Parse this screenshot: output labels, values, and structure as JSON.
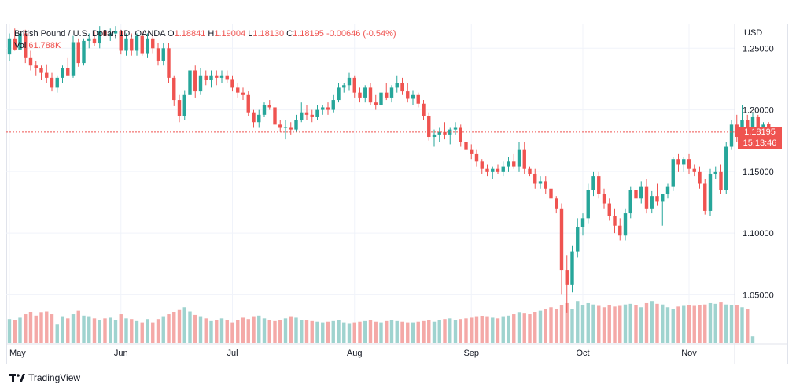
{
  "legend": {
    "instrument": "British Pound / U.S. Dollar, 1D, OANDA",
    "open_label": "O",
    "open": "1.18841",
    "high_label": "H",
    "high": "1.19004",
    "low_label": "L",
    "low": "1.18130",
    "close_label": "C",
    "close": "1.18195",
    "change": "-0.00646 (-0.54%)",
    "vol_label": "Vol",
    "vol": "61.788K"
  },
  "axis": {
    "currency": "USD"
  },
  "price_badge": {
    "price": "1.18195",
    "countdown": "15:13:46"
  },
  "brand": {
    "name": "TradingView"
  },
  "colors": {
    "up": "#26a69a",
    "down": "#ef5350",
    "up_volume": "#9fd3cf",
    "down_volume": "#f4a9a7"
  },
  "chart_data": {
    "type": "candlestick",
    "ylim": [
      1.01,
      1.27
    ],
    "yticks": [
      "1.25000",
      "1.20000",
      "1.15000",
      "1.10000",
      "1.05000"
    ],
    "ytick_values": [
      1.25,
      1.2,
      1.15,
      1.1,
      1.05
    ],
    "xticks": [
      "May",
      "Jun",
      "Jul",
      "Aug",
      "Sep",
      "Oct",
      "Nov"
    ],
    "xtick_index": [
      0,
      21,
      42,
      65,
      87,
      108,
      128
    ],
    "last_price": 1.18195,
    "candles": [
      [
        1.245,
        1.262,
        1.24,
        1.258
      ],
      [
        1.258,
        1.266,
        1.248,
        1.249
      ],
      [
        1.249,
        1.268,
        1.245,
        1.262
      ],
      [
        1.262,
        1.265,
        1.238,
        1.242
      ],
      [
        1.242,
        1.248,
        1.232,
        1.236
      ],
      [
        1.236,
        1.24,
        1.228,
        1.234
      ],
      [
        1.234,
        1.236,
        1.224,
        1.23
      ],
      [
        1.23,
        1.237,
        1.222,
        1.226
      ],
      [
        1.226,
        1.23,
        1.215,
        1.218
      ],
      [
        1.218,
        1.228,
        1.214,
        1.226
      ],
      [
        1.226,
        1.236,
        1.222,
        1.234
      ],
      [
        1.234,
        1.242,
        1.228,
        1.228
      ],
      [
        1.228,
        1.26,
        1.226,
        1.255
      ],
      [
        1.255,
        1.258,
        1.235,
        1.238
      ],
      [
        1.238,
        1.258,
        1.236,
        1.256
      ],
      [
        1.256,
        1.262,
        1.25,
        1.258
      ],
      [
        1.258,
        1.264,
        1.252,
        1.254
      ],
      [
        1.254,
        1.268,
        1.25,
        1.264
      ],
      [
        1.264,
        1.266,
        1.256,
        1.26
      ],
      [
        1.26,
        1.266,
        1.256,
        1.262
      ],
      [
        1.262,
        1.268,
        1.258,
        1.264
      ],
      [
        1.264,
        1.265,
        1.245,
        1.248
      ],
      [
        1.248,
        1.262,
        1.244,
        1.258
      ],
      [
        1.258,
        1.262,
        1.244,
        1.248
      ],
      [
        1.248,
        1.262,
        1.244,
        1.26
      ],
      [
        1.26,
        1.264,
        1.244,
        1.246
      ],
      [
        1.246,
        1.262,
        1.242,
        1.258
      ],
      [
        1.258,
        1.262,
        1.246,
        1.25
      ],
      [
        1.25,
        1.254,
        1.236,
        1.24
      ],
      [
        1.24,
        1.254,
        1.236,
        1.25
      ],
      [
        1.25,
        1.254,
        1.222,
        1.226
      ],
      [
        1.226,
        1.228,
        1.203,
        1.208
      ],
      [
        1.208,
        1.212,
        1.19,
        1.195
      ],
      [
        1.195,
        1.216,
        1.192,
        1.212
      ],
      [
        1.212,
        1.24,
        1.21,
        1.232
      ],
      [
        1.232,
        1.236,
        1.21,
        1.215
      ],
      [
        1.215,
        1.234,
        1.212,
        1.228
      ],
      [
        1.228,
        1.232,
        1.22,
        1.224
      ],
      [
        1.224,
        1.232,
        1.218,
        1.228
      ],
      [
        1.228,
        1.232,
        1.22,
        1.226
      ],
      [
        1.226,
        1.232,
        1.222,
        1.228
      ],
      [
        1.228,
        1.232,
        1.222,
        1.225
      ],
      [
        1.225,
        1.228,
        1.215,
        1.218
      ],
      [
        1.218,
        1.222,
        1.21,
        1.214
      ],
      [
        1.214,
        1.218,
        1.208,
        1.212
      ],
      [
        1.212,
        1.215,
        1.195,
        1.198
      ],
      [
        1.198,
        1.2,
        1.186,
        1.19
      ],
      [
        1.19,
        1.2,
        1.186,
        1.196
      ],
      [
        1.196,
        1.206,
        1.194,
        1.204
      ],
      [
        1.204,
        1.208,
        1.2,
        1.202
      ],
      [
        1.202,
        1.206,
        1.184,
        1.188
      ],
      [
        1.188,
        1.192,
        1.182,
        1.186
      ],
      [
        1.186,
        1.192,
        1.176,
        1.186
      ],
      [
        1.186,
        1.19,
        1.18,
        1.184
      ],
      [
        1.184,
        1.196,
        1.182,
        1.192
      ],
      [
        1.192,
        1.206,
        1.19,
        1.198
      ],
      [
        1.198,
        1.204,
        1.192,
        1.196
      ],
      [
        1.196,
        1.2,
        1.19,
        1.194
      ],
      [
        1.194,
        1.204,
        1.192,
        1.2
      ],
      [
        1.2,
        1.204,
        1.196,
        1.202
      ],
      [
        1.202,
        1.206,
        1.196,
        1.2
      ],
      [
        1.2,
        1.212,
        1.198,
        1.208
      ],
      [
        1.208,
        1.222,
        1.206,
        1.218
      ],
      [
        1.218,
        1.222,
        1.214,
        1.22
      ],
      [
        1.22,
        1.23,
        1.216,
        1.226
      ],
      [
        1.226,
        1.228,
        1.21,
        1.214
      ],
      [
        1.214,
        1.218,
        1.206,
        1.21
      ],
      [
        1.21,
        1.22,
        1.206,
        1.218
      ],
      [
        1.218,
        1.222,
        1.204,
        1.206
      ],
      [
        1.206,
        1.212,
        1.2,
        1.204
      ],
      [
        1.204,
        1.216,
        1.2,
        1.214
      ],
      [
        1.214,
        1.222,
        1.208,
        1.21
      ],
      [
        1.21,
        1.22,
        1.206,
        1.218
      ],
      [
        1.218,
        1.228,
        1.214,
        1.222
      ],
      [
        1.222,
        1.226,
        1.212,
        1.215
      ],
      [
        1.215,
        1.222,
        1.206,
        1.209
      ],
      [
        1.209,
        1.216,
        1.204,
        1.212
      ],
      [
        1.212,
        1.214,
        1.202,
        1.205
      ],
      [
        1.205,
        1.208,
        1.192,
        1.195
      ],
      [
        1.195,
        1.198,
        1.175,
        1.178
      ],
      [
        1.178,
        1.184,
        1.17,
        1.18
      ],
      [
        1.18,
        1.186,
        1.174,
        1.182
      ],
      [
        1.182,
        1.19,
        1.176,
        1.18
      ],
      [
        1.18,
        1.186,
        1.172,
        1.184
      ],
      [
        1.184,
        1.19,
        1.18,
        1.186
      ],
      [
        1.186,
        1.188,
        1.17,
        1.174
      ],
      [
        1.174,
        1.178,
        1.164,
        1.168
      ],
      [
        1.168,
        1.172,
        1.16,
        1.164
      ],
      [
        1.164,
        1.168,
        1.154,
        1.158
      ],
      [
        1.158,
        1.16,
        1.148,
        1.152
      ],
      [
        1.152,
        1.156,
        1.146,
        1.15
      ],
      [
        1.15,
        1.154,
        1.144,
        1.152
      ],
      [
        1.152,
        1.156,
        1.148,
        1.15
      ],
      [
        1.15,
        1.158,
        1.146,
        1.154
      ],
      [
        1.154,
        1.162,
        1.15,
        1.158
      ],
      [
        1.158,
        1.164,
        1.152,
        1.154
      ],
      [
        1.154,
        1.174,
        1.15,
        1.168
      ],
      [
        1.168,
        1.174,
        1.148,
        1.152
      ],
      [
        1.152,
        1.154,
        1.146,
        1.148
      ],
      [
        1.148,
        1.152,
        1.136,
        1.14
      ],
      [
        1.14,
        1.146,
        1.136,
        1.142
      ],
      [
        1.142,
        1.146,
        1.132,
        1.136
      ],
      [
        1.136,
        1.14,
        1.124,
        1.128
      ],
      [
        1.128,
        1.13,
        1.116,
        1.12
      ],
      [
        1.12,
        1.124,
        1.05,
        1.07
      ],
      [
        1.07,
        1.082,
        1.035,
        1.058
      ],
      [
        1.058,
        1.09,
        1.052,
        1.085
      ],
      [
        1.085,
        1.112,
        1.08,
        1.105
      ],
      [
        1.105,
        1.116,
        1.098,
        1.112
      ],
      [
        1.112,
        1.14,
        1.108,
        1.135
      ],
      [
        1.135,
        1.15,
        1.13,
        1.146
      ],
      [
        1.146,
        1.15,
        1.128,
        1.132
      ],
      [
        1.132,
        1.136,
        1.12,
        1.124
      ],
      [
        1.124,
        1.128,
        1.11,
        1.114
      ],
      [
        1.114,
        1.12,
        1.1,
        1.106
      ],
      [
        1.106,
        1.112,
        1.094,
        1.098
      ],
      [
        1.098,
        1.12,
        1.094,
        1.116
      ],
      [
        1.116,
        1.138,
        1.112,
        1.135
      ],
      [
        1.135,
        1.142,
        1.124,
        1.128
      ],
      [
        1.128,
        1.142,
        1.124,
        1.138
      ],
      [
        1.138,
        1.144,
        1.116,
        1.12
      ],
      [
        1.12,
        1.134,
        1.116,
        1.13
      ],
      [
        1.13,
        1.14,
        1.122,
        1.126
      ],
      [
        1.126,
        1.132,
        1.106,
        1.132
      ],
      [
        1.132,
        1.14,
        1.128,
        1.138
      ],
      [
        1.138,
        1.162,
        1.134,
        1.16
      ],
      [
        1.16,
        1.164,
        1.15,
        1.156
      ],
      [
        1.156,
        1.162,
        1.15,
        1.16
      ],
      [
        1.16,
        1.164,
        1.148,
        1.152
      ],
      [
        1.152,
        1.156,
        1.146,
        1.15
      ],
      [
        1.15,
        1.154,
        1.136,
        1.14
      ],
      [
        1.14,
        1.144,
        1.115,
        1.118
      ],
      [
        1.118,
        1.152,
        1.114,
        1.148
      ],
      [
        1.148,
        1.154,
        1.144,
        1.15
      ],
      [
        1.15,
        1.156,
        1.132,
        1.135
      ],
      [
        1.135,
        1.174,
        1.132,
        1.17
      ],
      [
        1.17,
        1.192,
        1.168,
        1.188
      ],
      [
        1.188,
        1.196,
        1.174,
        1.178
      ],
      [
        1.178,
        1.204,
        1.174,
        1.192
      ],
      [
        1.192,
        1.196,
        1.182,
        1.186
      ],
      [
        1.186,
        1.198,
        1.184,
        1.194
      ],
      [
        1.194,
        1.196,
        1.18,
        1.184
      ],
      [
        1.184,
        1.19,
        1.176,
        1.188
      ],
      [
        1.18841,
        1.19004,
        1.1813,
        1.18195
      ]
    ],
    "volume_ylim": [
      0,
      100
    ],
    "volumes": [
      35,
      34,
      37,
      42,
      45,
      40,
      44,
      46,
      42,
      27,
      38,
      36,
      42,
      47,
      40,
      38,
      36,
      33,
      36,
      37,
      33,
      42,
      36,
      35,
      32,
      30,
      35,
      30,
      35,
      38,
      42,
      45,
      48,
      52,
      46,
      41,
      38,
      36,
      32,
      34,
      36,
      33,
      30,
      34,
      37,
      35,
      38,
      40,
      36,
      33,
      32,
      34,
      36,
      38,
      37,
      34,
      33,
      32,
      31,
      30,
      31,
      32,
      33,
      30,
      29,
      30,
      31,
      32,
      33,
      31,
      30,
      32,
      33,
      32,
      31,
      30,
      30,
      31,
      32,
      33,
      31,
      34,
      35,
      36,
      34,
      35,
      36,
      37,
      38,
      39,
      38,
      37,
      36,
      38,
      40,
      42,
      44,
      43,
      42,
      45,
      47,
      50,
      52,
      50,
      55,
      58,
      50,
      60,
      55,
      58,
      56,
      54,
      52,
      55,
      53,
      54,
      56,
      57,
      55,
      52,
      58,
      60,
      57,
      56,
      52,
      50,
      53,
      54,
      55,
      54,
      55,
      56,
      58,
      57,
      59,
      56,
      55,
      55,
      52,
      50,
      10
    ]
  }
}
